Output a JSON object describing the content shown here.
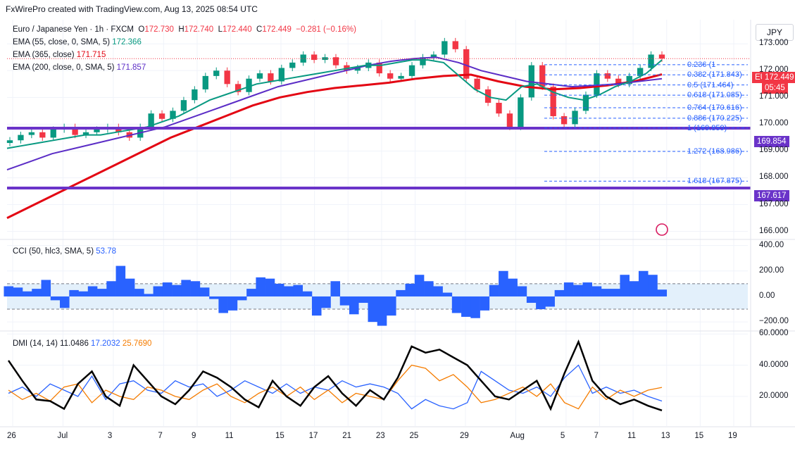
{
  "header": {
    "credit": "FxWirePro created with TradingView.com, Aug 13, 2025 08:54 UTC"
  },
  "currency_button": "JPY",
  "legend": {
    "symbol": "Euro / Japanese Yen · 1h · FXCM",
    "o_label": "O",
    "o_value": "172.730",
    "h_label": "H",
    "h_value": "172.740",
    "l_label": "L",
    "l_value": "172.440",
    "c_label": "C",
    "c_value": "172.449",
    "change": "−0.281 (−0.16%)",
    "ema55": "EMA (55, close, 0, SMA, 5)",
    "ema55_value": "172.366",
    "ema365": "EMA (365, close)",
    "ema365_value": "171.715",
    "ema200": "EMA (200, close, 0, SMA, 5)",
    "ema200_value": "171.857",
    "cci": "CCI (50, hlc3, SMA, 5)",
    "cci_value": "53.78",
    "dmi": "DMI (14, 14)",
    "dmi_adx": "11.0486",
    "dmi_plus": "17.2032",
    "dmi_minus": "25.7690"
  },
  "tags": {
    "symbol": "EURJPY",
    "price": "172.449",
    "countdown": "05:45",
    "support1": "169.854",
    "support2": "167.617"
  },
  "colors": {
    "up": "#089981",
    "down": "#f23645",
    "ema55": "#089981",
    "ema365": "#5b2dc6",
    "ema200": "#e30613",
    "support": "#6a33c9",
    "cci": "#2962ff",
    "adx": "#000000",
    "di_plus": "#2962ff",
    "di_minus": "#f57c00",
    "fib": "#2962ff"
  },
  "chart_data": [
    {
      "type": "candlestick",
      "title": "Euro / Japanese Yen · 1h · FXCM",
      "y_ticks": [
        "173.000",
        "172.000",
        "171.000",
        "170.000",
        "169.000",
        "168.000",
        "167.000",
        "166.000"
      ],
      "ylim": [
        165.7,
        173.9
      ],
      "x_ticks": [
        "26",
        "Jul",
        "3",
        "7",
        "9",
        "11",
        "15",
        "17",
        "21",
        "23",
        "25",
        "29",
        "Aug",
        "5",
        "7",
        "11",
        "13",
        "15",
        "19"
      ],
      "x_index": [
        0,
        3,
        6,
        9,
        11,
        13,
        16,
        18,
        20,
        22,
        24,
        27,
        30,
        33,
        35,
        37,
        39,
        41,
        43
      ],
      "closes": [
        169.4,
        169.6,
        169.7,
        169.5,
        169.8,
        169.9,
        169.6,
        169.7,
        169.8,
        169.9,
        169.7,
        169.5,
        169.9,
        170.4,
        170.2,
        170.5,
        170.9,
        171.3,
        171.8,
        172.0,
        171.5,
        171.2,
        171.7,
        171.9,
        171.6,
        172.1,
        172.3,
        172.6,
        172.4,
        172.5,
        172.2,
        172.0,
        172.1,
        172.3,
        171.9,
        171.7,
        171.8,
        172.2,
        172.5,
        172.6,
        173.1,
        172.8,
        171.7,
        171.3,
        170.8,
        170.4,
        169.9,
        171.0,
        172.2,
        171.4,
        170.3,
        170.0,
        170.5,
        171.1,
        171.9,
        171.7,
        171.5,
        171.8,
        172.1,
        172.6,
        172.45
      ],
      "ema55": [
        169.1,
        169.2,
        169.3,
        169.4,
        169.5,
        169.6,
        169.6,
        169.7,
        169.8,
        169.9,
        170.1,
        170.3,
        170.6,
        170.9,
        171.1,
        171.3,
        171.5,
        171.6,
        171.7,
        171.8,
        171.9,
        172.0,
        172.1,
        172.2,
        172.2,
        172.3,
        172.4,
        172.4,
        172.3,
        171.8,
        171.3,
        171.0,
        170.9,
        171.4,
        171.5,
        171.2,
        171.0,
        170.9,
        171.1,
        171.4,
        171.6,
        171.9,
        172.4
      ],
      "ema365": [
        168.3,
        168.6,
        168.9,
        169.1,
        169.3,
        169.5,
        169.7,
        169.9,
        170.2,
        170.5,
        170.8,
        171.1,
        171.4,
        171.6,
        171.8,
        172.0,
        172.2,
        172.35,
        172.45,
        172.5,
        172.3,
        172.0,
        171.8,
        171.6,
        171.5,
        171.4,
        171.45,
        171.5,
        171.6,
        171.7
      ],
      "ema200": [
        166.5,
        167.0,
        167.5,
        168.0,
        168.5,
        169.0,
        169.5,
        169.9,
        170.3,
        170.7,
        171.0,
        171.2,
        171.35,
        171.45,
        171.55,
        171.7,
        171.8,
        171.85,
        171.6,
        171.4,
        171.3,
        171.35,
        171.45,
        171.6,
        171.86
      ],
      "support_lines": [
        169.854,
        167.617
      ],
      "fibonacci": [
        {
          "level": "0.236",
          "price": "172.",
          "display": "0.236 (1"
        },
        {
          "level": "0.382",
          "price": "171.843",
          "display": "0.382 (171.843)"
        },
        {
          "level": "0.5",
          "price": "171.464",
          "display": "0.5 (171.464)"
        },
        {
          "level": "0.618",
          "price": "171.085",
          "display": "0.618 (171.085)"
        },
        {
          "level": "0.764",
          "price": "170.616",
          "display": "0.764 (170.616)"
        },
        {
          "level": "0.886",
          "price": "170.225",
          "display": "0.886 (170.225)"
        },
        {
          "level": "1",
          "price": "169.859",
          "display": "1 (169.859)"
        },
        {
          "level": "1.272",
          "price": "168.986",
          "display": "1.272 (168.986)"
        },
        {
          "level": "1.618",
          "price": "167.875",
          "display": "1.618 (167.875)"
        }
      ]
    },
    {
      "type": "area",
      "title": "CCI (50, hlc3, SMA, 5)",
      "y_ticks": [
        "400.00",
        "200.00",
        "0.00",
        "−200.00"
      ],
      "ylim": [
        -260,
        420
      ],
      "bands": [
        100,
        -100
      ],
      "values": [
        80,
        70,
        40,
        60,
        130,
        -30,
        -90,
        50,
        40,
        80,
        60,
        120,
        240,
        140,
        60,
        20,
        80,
        110,
        90,
        130,
        120,
        70,
        -20,
        -130,
        -110,
        -30,
        60,
        150,
        140,
        100,
        80,
        90,
        40,
        -150,
        -90,
        120,
        -70,
        -140,
        -50,
        -200,
        -230,
        -150,
        50,
        100,
        170,
        120,
        80,
        30,
        -130,
        -160,
        -170,
        -110,
        90,
        200,
        140,
        80,
        -50,
        -100,
        -80,
        50,
        110,
        90,
        110,
        80,
        60,
        60,
        170,
        120,
        200,
        170,
        53.78
      ]
    },
    {
      "type": "line",
      "title": "DMI (14, 14)",
      "y_ticks": [
        "60.0000",
        "40.0000",
        "20.0000"
      ],
      "ylim": [
        1,
        61
      ],
      "series": [
        {
          "name": "ADX",
          "values": [
            43,
            30,
            18,
            17,
            12,
            28,
            36,
            20,
            14,
            40,
            30,
            20,
            15,
            24,
            36,
            32,
            26,
            18,
            13,
            30,
            20,
            14,
            26,
            33,
            22,
            14,
            24,
            18,
            32,
            52,
            48,
            50,
            45,
            40,
            30,
            20,
            18,
            24,
            30,
            12,
            35,
            55,
            30,
            20,
            15,
            18,
            14,
            11
          ]
        },
        {
          "name": "DI+",
          "values": [
            22,
            26,
            20,
            28,
            24,
            20,
            33,
            18,
            28,
            30,
            24,
            22,
            30,
            26,
            28,
            20,
            24,
            30,
            26,
            22,
            28,
            22,
            26,
            24,
            30,
            26,
            28,
            26,
            22,
            12,
            18,
            14,
            12,
            16,
            36,
            30,
            24,
            22,
            26,
            20,
            32,
            40,
            22,
            26,
            22,
            24,
            20,
            17
          ]
        },
        {
          "name": "DI−",
          "values": [
            24,
            18,
            22,
            17,
            26,
            28,
            16,
            24,
            20,
            18,
            26,
            24,
            20,
            18,
            24,
            28,
            20,
            16,
            22,
            26,
            20,
            26,
            18,
            24,
            16,
            22,
            20,
            18,
            30,
            40,
            38,
            30,
            34,
            26,
            16,
            18,
            22,
            26,
            20,
            28,
            16,
            12,
            26,
            18,
            24,
            20,
            24,
            25.77
          ]
        }
      ]
    }
  ]
}
